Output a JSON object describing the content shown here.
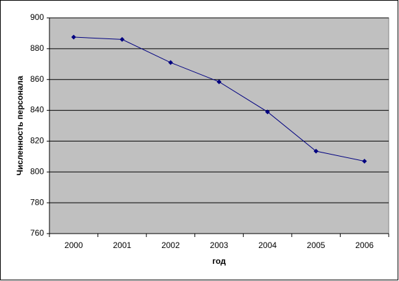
{
  "chart_data": {
    "type": "line",
    "x_label": "год",
    "y_label": "Численность персонала",
    "categories": [
      "2000",
      "2001",
      "2002",
      "2003",
      "2004",
      "2005",
      "2006"
    ],
    "values": [
      887.5,
      886,
      871,
      858.5,
      839,
      813.5,
      807
    ],
    "color": "#000080",
    "plot_background": "#c0c0c0",
    "ylim": [
      760,
      900
    ],
    "yticks": [
      760,
      780,
      800,
      820,
      840,
      860,
      880,
      900
    ],
    "grid": true
  }
}
